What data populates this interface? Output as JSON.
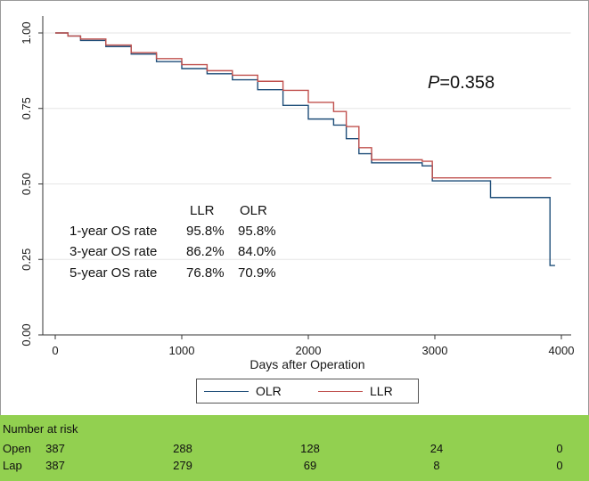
{
  "chart_data": {
    "type": "line",
    "xlabel": "Days after Operation",
    "ylabel": "",
    "xlim": [
      0,
      4000
    ],
    "ylim": [
      0,
      1
    ],
    "x_ticks": [
      "0",
      "1000",
      "2000",
      "3000",
      "4000"
    ],
    "y_ticks": [
      "0.00",
      "0.25",
      "0.50",
      "0.75",
      "1.00"
    ],
    "grid": "horizontal",
    "series": [
      {
        "name": "OLR",
        "color": "#1f4e79",
        "step": true,
        "points": [
          [
            0,
            1.0
          ],
          [
            100,
            0.99
          ],
          [
            200,
            0.975
          ],
          [
            400,
            0.955
          ],
          [
            600,
            0.93
          ],
          [
            800,
            0.905
          ],
          [
            1000,
            0.882
          ],
          [
            1200,
            0.865
          ],
          [
            1400,
            0.845
          ],
          [
            1600,
            0.812
          ],
          [
            1800,
            0.76
          ],
          [
            2000,
            0.715
          ],
          [
            2200,
            0.695
          ],
          [
            2300,
            0.65
          ],
          [
            2400,
            0.6
          ],
          [
            2500,
            0.57
          ],
          [
            2700,
            0.57
          ],
          [
            2900,
            0.56
          ],
          [
            2980,
            0.51
          ],
          [
            3400,
            0.51
          ],
          [
            3440,
            0.455
          ],
          [
            3900,
            0.455
          ],
          [
            3910,
            0.23
          ],
          [
            3950,
            0.23
          ]
        ]
      },
      {
        "name": "LLR",
        "color": "#c0504d",
        "step": true,
        "points": [
          [
            0,
            1.0
          ],
          [
            100,
            0.99
          ],
          [
            200,
            0.98
          ],
          [
            400,
            0.96
          ],
          [
            600,
            0.935
          ],
          [
            800,
            0.915
          ],
          [
            1000,
            0.895
          ],
          [
            1200,
            0.875
          ],
          [
            1400,
            0.86
          ],
          [
            1600,
            0.84
          ],
          [
            1800,
            0.81
          ],
          [
            2000,
            0.77
          ],
          [
            2200,
            0.74
          ],
          [
            2300,
            0.69
          ],
          [
            2400,
            0.62
          ],
          [
            2500,
            0.58
          ],
          [
            2700,
            0.58
          ],
          [
            2900,
            0.575
          ],
          [
            2980,
            0.52
          ],
          [
            3400,
            0.52
          ],
          [
            3920,
            0.52
          ]
        ]
      }
    ],
    "annotation": {
      "p_prefix": "P",
      "p_value": "=0.358"
    },
    "stats_table": {
      "headers": [
        "LLR",
        "OLR"
      ],
      "rows": [
        {
          "label": "1-year OS rate",
          "llr": "95.8%",
          "olr": "95.8%"
        },
        {
          "label": "3-year OS rate",
          "llr": "86.2%",
          "olr": "84.0%"
        },
        {
          "label": "5-year OS rate",
          "llr": "76.8%",
          "olr": "70.9%"
        }
      ]
    },
    "legend": {
      "position": "bottom",
      "items": [
        "OLR",
        "LLR"
      ]
    }
  },
  "risk_table": {
    "title": "Number at risk",
    "background": "#92d050",
    "timepoints": [
      0,
      1000,
      2000,
      3000,
      4000
    ],
    "rows": [
      {
        "label": "Open",
        "values": [
          "387",
          "288",
          "128",
          "24",
          "0"
        ]
      },
      {
        "label": "Lap",
        "values": [
          "387",
          "279",
          "69",
          "8",
          "0"
        ]
      }
    ]
  }
}
